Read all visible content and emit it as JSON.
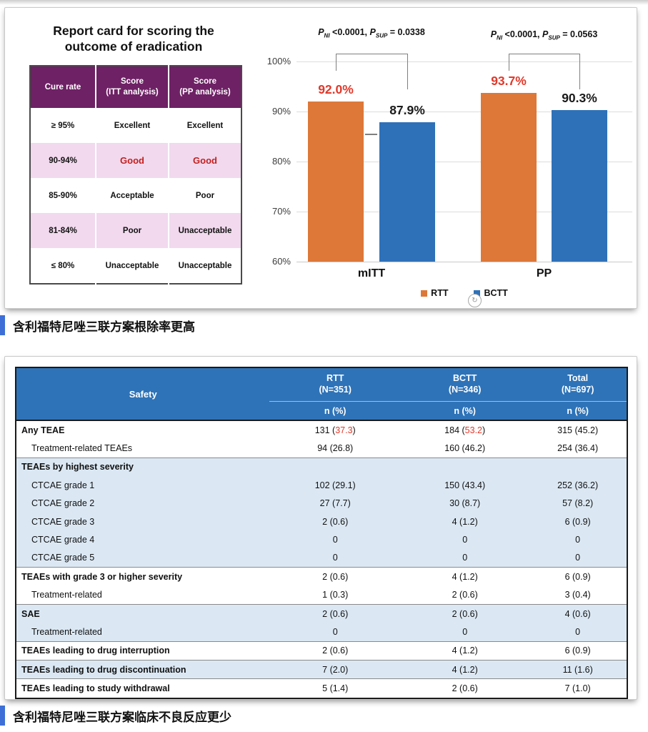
{
  "page": {
    "caption1": "含利福特尼唑三联方案根除率更高",
    "caption2": "含利福特尼唑三联方案临床不良反应更少",
    "accent_blue": "#3D6FD6"
  },
  "report_card": {
    "title": "Report card for scoring the outcome of eradication",
    "columns": [
      "Cure rate",
      "Score\n(ITT analysis)",
      "Score\n(PP analysis)"
    ],
    "header_color": "#6E2165",
    "shade_color": "#F2D9EE",
    "rows": [
      {
        "cure_rate": "≥ 95%",
        "itt": "Excellent",
        "pp": "Excellent",
        "shaded": false,
        "highlight": false
      },
      {
        "cure_rate": "90-94%",
        "itt": "Good",
        "pp": "Good",
        "shaded": true,
        "highlight": true
      },
      {
        "cure_rate": "85-90%",
        "itt": "Acceptable",
        "pp": "Poor",
        "shaded": false,
        "highlight": false
      },
      {
        "cure_rate": "81-84%",
        "itt": "Poor",
        "pp": "Unacceptable",
        "shaded": true,
        "highlight": false
      },
      {
        "cure_rate": "≤ 80%",
        "itt": "Unacceptable",
        "pp": "Unacceptable",
        "shaded": false,
        "highlight": false
      }
    ]
  },
  "chart_data": {
    "type": "bar",
    "categories": [
      "mITT",
      "PP"
    ],
    "series": [
      {
        "name": "RTT",
        "values": [
          92.0,
          93.7
        ],
        "labels": [
          "92.0%",
          "93.7%"
        ],
        "color": "#DD7839",
        "label_color": "#E0392B"
      },
      {
        "name": "BCTT",
        "values": [
          87.9,
          90.3
        ],
        "labels": [
          "87.9%",
          "90.3%"
        ],
        "color": "#2E71B8",
        "label_color": "#1A1A1A"
      }
    ],
    "ylim": [
      60,
      100
    ],
    "yticks": [
      "100%",
      "90%",
      "80%",
      "70%",
      "60%"
    ],
    "grid": true,
    "legend_position": "bottom",
    "annotations": [
      {
        "category": "mITT",
        "p_ni_label": "P",
        "p_ni_sub": "NI",
        "p_ni_value": "<0.0001,",
        "p_sup_label": "P",
        "p_sup_sub": "SUP",
        "p_sup_value": "= 0.0338"
      },
      {
        "category": "PP",
        "p_ni_label": "P",
        "p_ni_sub": "NI",
        "p_ni_value": "<0.0001,",
        "p_sup_label": "P",
        "p_sup_sub": "SUP",
        "p_sup_value": "= 0.0563"
      }
    ]
  },
  "safety_table": {
    "header": {
      "label": "Safety",
      "columns": [
        {
          "line1": "RTT",
          "line2": "(N=351)",
          "sub": "n (%)"
        },
        {
          "line1": "BCTT",
          "line2": "(N=346)",
          "sub": "n (%)"
        },
        {
          "line1": "Total",
          "line2": "(N=697)",
          "sub": "n (%)"
        }
      ]
    },
    "rows": [
      {
        "label": "Any TEAE",
        "style": "section",
        "shaded": false,
        "rule": false,
        "cells": [
          [
            "131 (",
            "37.3",
            ")"
          ],
          [
            "184 (",
            "53.2",
            ")"
          ],
          "315 (45.2)"
        ]
      },
      {
        "label": "Treatment-related TEAEs",
        "style": "sub",
        "shaded": false,
        "rule": false,
        "cells": [
          "94 (26.8)",
          "160 (46.2)",
          "254 (36.4)"
        ]
      },
      {
        "label": "TEAEs by highest severity",
        "style": "section",
        "shaded": true,
        "rule": true,
        "cells": [
          "",
          "",
          ""
        ]
      },
      {
        "label": "CTCAE grade 1",
        "style": "sub",
        "shaded": true,
        "rule": false,
        "cells": [
          "102 (29.1)",
          "150 (43.4)",
          "252 (36.2)"
        ]
      },
      {
        "label": "CTCAE grade 2",
        "style": "sub",
        "shaded": true,
        "rule": false,
        "cells": [
          "27 (7.7)",
          "30 (8.7)",
          "57 (8.2)"
        ]
      },
      {
        "label": "CTCAE grade 3",
        "style": "sub",
        "shaded": true,
        "rule": false,
        "cells": [
          "2 (0.6)",
          "4 (1.2)",
          "6 (0.9)"
        ]
      },
      {
        "label": "CTCAE grade 4",
        "style": "sub",
        "shaded": true,
        "rule": false,
        "cells": [
          "0",
          "0",
          "0"
        ]
      },
      {
        "label": "CTCAE grade 5",
        "style": "sub",
        "shaded": true,
        "rule": false,
        "cells": [
          "0",
          "0",
          "0"
        ]
      },
      {
        "label": "TEAEs with grade 3 or higher severity",
        "style": "section",
        "shaded": false,
        "rule": true,
        "cells": [
          "2 (0.6)",
          "4 (1.2)",
          "6 (0.9)"
        ]
      },
      {
        "label": "Treatment-related",
        "style": "sub",
        "shaded": false,
        "rule": false,
        "cells": [
          "1 (0.3)",
          "2 (0.6)",
          "3 (0.4)"
        ]
      },
      {
        "label": "SAE",
        "style": "section",
        "shaded": true,
        "rule": true,
        "cells": [
          "2 (0.6)",
          "2 (0.6)",
          "4 (0.6)"
        ]
      },
      {
        "label": "Treatment-related",
        "style": "sub",
        "shaded": true,
        "rule": false,
        "cells": [
          "0",
          "0",
          "0"
        ]
      },
      {
        "label": "TEAEs leading to drug interruption",
        "style": "section",
        "shaded": false,
        "rule": true,
        "cells": [
          "2 (0.6)",
          "4 (1.2)",
          "6 (0.9)"
        ]
      },
      {
        "label": "TEAEs leading to drug discontinuation",
        "style": "section",
        "shaded": true,
        "rule": true,
        "cells": [
          "7 (2.0)",
          "4 (1.2)",
          "11 (1.6)"
        ]
      },
      {
        "label": "TEAEs leading to study withdrawal",
        "style": "section",
        "shaded": false,
        "rule": true,
        "cells": [
          "5 (1.4)",
          "2 (0.6)",
          "7 (1.0)"
        ]
      }
    ]
  }
}
